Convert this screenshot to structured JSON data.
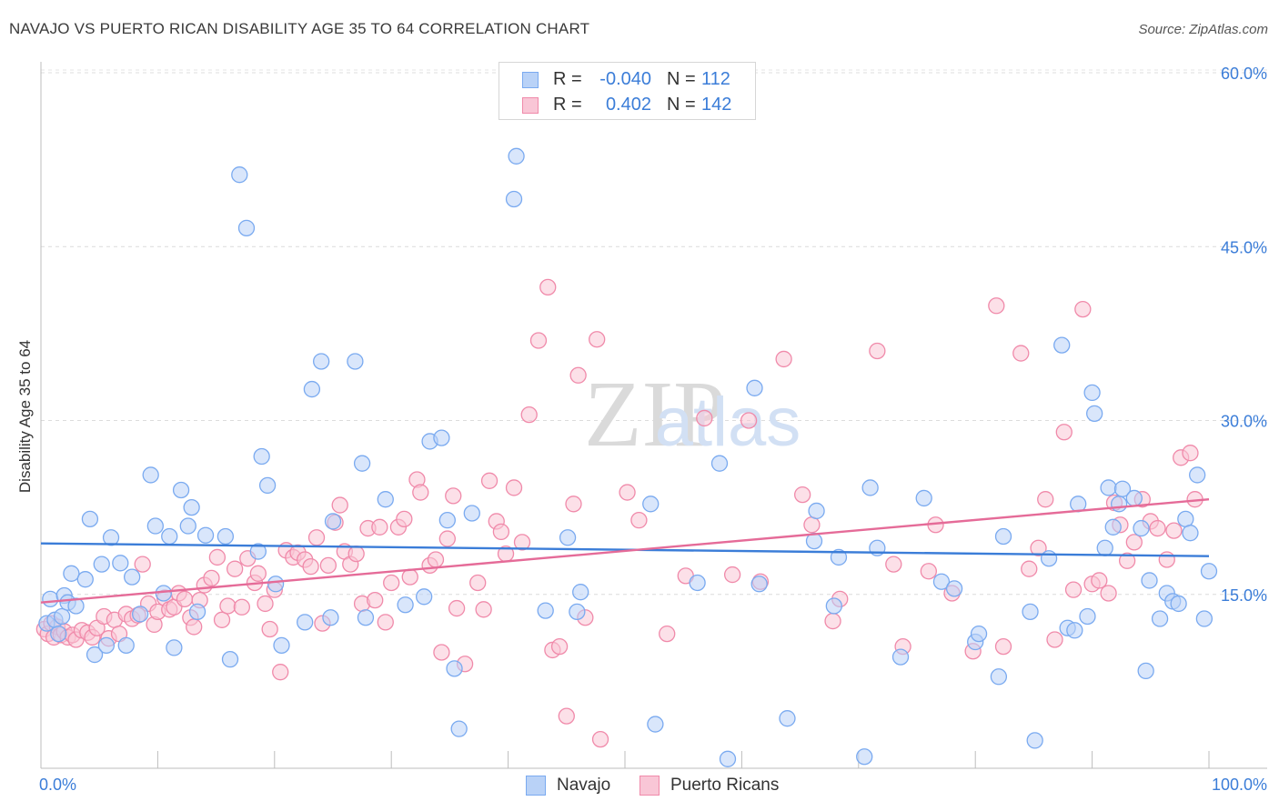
{
  "header": {
    "title": "NAVAJO VS PUERTO RICAN DISABILITY AGE 35 TO 64 CORRELATION CHART",
    "source": "Source: ZipAtlas.com"
  },
  "watermark": {
    "zip": "ZIP",
    "atlas": "atlas"
  },
  "legend": {
    "rows": [
      {
        "r_label": "R =",
        "r_value": "-0.040",
        "n_label": "N =",
        "n_value": "112",
        "color": "#7aaaf0",
        "fill": "#b9d2f7"
      },
      {
        "r_label": "R =",
        "r_value": "0.402",
        "n_label": "N =",
        "n_value": "142",
        "color": "#f08aaa",
        "fill": "#f9c6d6"
      }
    ]
  },
  "bottom_legend": {
    "navajo": "Navajo",
    "puerto_ricans": "Puerto Ricans"
  },
  "chart_data": {
    "type": "scatter",
    "title": "NAVAJO VS PUERTO RICAN DISABILITY AGE 35 TO 64 CORRELATION CHART",
    "xlabel": "",
    "ylabel": "Disability Age 35 to 64",
    "xlim": [
      0,
      100
    ],
    "ylim": [
      0,
      60
    ],
    "x_tick_labels": [
      "0.0%",
      "100.0%"
    ],
    "y_ticks": [
      15,
      30,
      45,
      60
    ],
    "y_tick_labels": [
      "15.0%",
      "30.0%",
      "45.0%",
      "60.0%"
    ],
    "grid": true,
    "legend_position": "top-center",
    "series": [
      {
        "name": "Navajo",
        "color": "#3b7dd8",
        "fill": "#b9d2f7",
        "stroke": "#7aaaf0",
        "trend": {
          "start": [
            0,
            19.4
          ],
          "end": [
            100,
            18.3
          ]
        },
        "points": [
          [
            0.5,
            12.5
          ],
          [
            0.8,
            14.6
          ],
          [
            1.2,
            12.8
          ],
          [
            1.5,
            11.6
          ],
          [
            1.8,
            13.1
          ],
          [
            2.0,
            14.9
          ],
          [
            2.3,
            14.3
          ],
          [
            2.6,
            16.8
          ],
          [
            3.0,
            14.0
          ],
          [
            3.8,
            16.3
          ],
          [
            4.2,
            21.5
          ],
          [
            4.6,
            9.8
          ],
          [
            5.2,
            17.6
          ],
          [
            5.6,
            10.6
          ],
          [
            6.0,
            19.9
          ],
          [
            6.8,
            17.7
          ],
          [
            7.3,
            10.6
          ],
          [
            7.8,
            16.5
          ],
          [
            8.5,
            13.3
          ],
          [
            9.4,
            25.3
          ],
          [
            9.8,
            20.9
          ],
          [
            10.5,
            15.1
          ],
          [
            11.0,
            20.0
          ],
          [
            11.4,
            10.4
          ],
          [
            12.0,
            24.0
          ],
          [
            12.6,
            20.9
          ],
          [
            12.9,
            22.5
          ],
          [
            13.4,
            13.5
          ],
          [
            14.1,
            20.1
          ],
          [
            15.8,
            20.0
          ],
          [
            16.2,
            9.4
          ],
          [
            17.0,
            51.2
          ],
          [
            17.6,
            46.6
          ],
          [
            18.6,
            18.7
          ],
          [
            18.9,
            26.9
          ],
          [
            19.4,
            24.4
          ],
          [
            20.1,
            15.9
          ],
          [
            20.6,
            10.6
          ],
          [
            22.6,
            12.6
          ],
          [
            23.2,
            32.7
          ],
          [
            24.0,
            35.1
          ],
          [
            24.8,
            13.0
          ],
          [
            25.0,
            21.3
          ],
          [
            26.9,
            35.1
          ],
          [
            27.5,
            26.3
          ],
          [
            27.8,
            13.0
          ],
          [
            29.5,
            23.2
          ],
          [
            31.2,
            14.1
          ],
          [
            32.8,
            14.8
          ],
          [
            33.3,
            28.2
          ],
          [
            34.3,
            28.5
          ],
          [
            34.8,
            21.4
          ],
          [
            35.4,
            8.6
          ],
          [
            35.8,
            3.4
          ],
          [
            36.9,
            22.0
          ],
          [
            40.5,
            49.1
          ],
          [
            40.7,
            52.8
          ],
          [
            43.2,
            13.6
          ],
          [
            45.1,
            19.9
          ],
          [
            45.9,
            13.5
          ],
          [
            46.2,
            15.2
          ],
          [
            52.2,
            22.8
          ],
          [
            52.6,
            3.8
          ],
          [
            56.2,
            16.0
          ],
          [
            58.1,
            26.3
          ],
          [
            58.8,
            0.8
          ],
          [
            61.1,
            32.8
          ],
          [
            61.5,
            15.9
          ],
          [
            63.9,
            4.3
          ],
          [
            66.2,
            19.6
          ],
          [
            66.4,
            22.2
          ],
          [
            67.9,
            14.0
          ],
          [
            68.3,
            18.2
          ],
          [
            70.5,
            1.0
          ],
          [
            71.0,
            24.2
          ],
          [
            71.6,
            19.0
          ],
          [
            73.6,
            9.6
          ],
          [
            75.6,
            23.3
          ],
          [
            77.1,
            16.1
          ],
          [
            78.2,
            15.5
          ],
          [
            80.0,
            10.9
          ],
          [
            80.3,
            11.6
          ],
          [
            82.0,
            7.9
          ],
          [
            82.4,
            20.0
          ],
          [
            84.7,
            13.5
          ],
          [
            85.1,
            2.4
          ],
          [
            86.3,
            18.1
          ],
          [
            87.4,
            36.5
          ],
          [
            87.9,
            12.1
          ],
          [
            88.5,
            11.9
          ],
          [
            88.8,
            22.8
          ],
          [
            89.6,
            13.1
          ],
          [
            90.0,
            32.4
          ],
          [
            90.2,
            30.6
          ],
          [
            91.1,
            19.0
          ],
          [
            91.4,
            24.2
          ],
          [
            91.8,
            20.8
          ],
          [
            92.3,
            22.8
          ],
          [
            92.6,
            24.1
          ],
          [
            93.6,
            23.3
          ],
          [
            94.2,
            20.7
          ],
          [
            94.6,
            8.4
          ],
          [
            94.9,
            16.2
          ],
          [
            95.8,
            12.9
          ],
          [
            96.4,
            15.1
          ],
          [
            96.9,
            14.4
          ],
          [
            97.4,
            14.2
          ],
          [
            98.0,
            21.5
          ],
          [
            98.4,
            20.3
          ],
          [
            99.0,
            25.3
          ],
          [
            99.6,
            12.9
          ],
          [
            100.0,
            17.0
          ]
        ]
      },
      {
        "name": "Puerto Ricans",
        "color": "#e56b98",
        "fill": "#f9c6d6",
        "stroke": "#f08aaa",
        "trend": {
          "start": [
            0,
            14.3
          ],
          "end": [
            100,
            23.2
          ]
        },
        "points": [
          [
            0.3,
            12.0
          ],
          [
            0.6,
            11.6
          ],
          [
            0.9,
            12.5
          ],
          [
            1.1,
            11.3
          ],
          [
            1.4,
            12.2
          ],
          [
            1.7,
            11.5
          ],
          [
            2.0,
            11.8
          ],
          [
            2.3,
            11.3
          ],
          [
            2.7,
            11.5
          ],
          [
            3.0,
            11.1
          ],
          [
            3.5,
            11.9
          ],
          [
            4.0,
            11.7
          ],
          [
            4.4,
            11.3
          ],
          [
            4.8,
            12.1
          ],
          [
            5.4,
            13.1
          ],
          [
            5.8,
            11.2
          ],
          [
            6.3,
            12.8
          ],
          [
            6.7,
            11.6
          ],
          [
            7.3,
            13.3
          ],
          [
            7.8,
            12.9
          ],
          [
            8.3,
            13.2
          ],
          [
            8.7,
            17.6
          ],
          [
            9.2,
            14.2
          ],
          [
            9.7,
            12.4
          ],
          [
            10.0,
            13.5
          ],
          [
            10.6,
            14.7
          ],
          [
            11.0,
            13.7
          ],
          [
            11.4,
            13.9
          ],
          [
            11.8,
            15.1
          ],
          [
            12.3,
            14.6
          ],
          [
            12.8,
            13.0
          ],
          [
            13.1,
            12.2
          ],
          [
            13.6,
            14.5
          ],
          [
            14.0,
            15.8
          ],
          [
            14.6,
            16.4
          ],
          [
            15.1,
            18.2
          ],
          [
            15.5,
            12.8
          ],
          [
            16.0,
            14.0
          ],
          [
            16.6,
            17.2
          ],
          [
            17.2,
            13.9
          ],
          [
            17.7,
            18.1
          ],
          [
            18.3,
            16.0
          ],
          [
            18.6,
            16.8
          ],
          [
            19.2,
            14.2
          ],
          [
            19.6,
            12.0
          ],
          [
            20.0,
            15.4
          ],
          [
            20.5,
            8.3
          ],
          [
            21.0,
            18.8
          ],
          [
            21.6,
            18.2
          ],
          [
            22.0,
            18.6
          ],
          [
            22.6,
            18.0
          ],
          [
            23.1,
            17.4
          ],
          [
            23.6,
            19.9
          ],
          [
            24.1,
            12.5
          ],
          [
            24.6,
            17.5
          ],
          [
            25.2,
            21.2
          ],
          [
            25.6,
            22.7
          ],
          [
            26.0,
            18.7
          ],
          [
            26.5,
            17.6
          ],
          [
            27.0,
            18.5
          ],
          [
            27.5,
            14.2
          ],
          [
            28.0,
            20.7
          ],
          [
            28.6,
            14.5
          ],
          [
            29.0,
            20.8
          ],
          [
            29.5,
            12.6
          ],
          [
            30.0,
            16.0
          ],
          [
            30.6,
            20.8
          ],
          [
            31.1,
            21.5
          ],
          [
            31.6,
            16.5
          ],
          [
            32.2,
            24.9
          ],
          [
            32.5,
            23.8
          ],
          [
            33.3,
            17.5
          ],
          [
            33.8,
            18.0
          ],
          [
            34.3,
            10.0
          ],
          [
            34.8,
            19.8
          ],
          [
            35.3,
            23.5
          ],
          [
            35.6,
            13.8
          ],
          [
            36.3,
            9.0
          ],
          [
            37.4,
            16.0
          ],
          [
            37.9,
            13.7
          ],
          [
            38.4,
            24.8
          ],
          [
            39.0,
            21.3
          ],
          [
            39.4,
            20.4
          ],
          [
            39.8,
            18.5
          ],
          [
            40.5,
            24.2
          ],
          [
            41.2,
            19.5
          ],
          [
            41.8,
            30.5
          ],
          [
            42.6,
            36.9
          ],
          [
            43.4,
            41.5
          ],
          [
            43.8,
            10.2
          ],
          [
            44.4,
            10.5
          ],
          [
            45.0,
            4.5
          ],
          [
            45.6,
            22.8
          ],
          [
            46.0,
            33.9
          ],
          [
            46.6,
            13.0
          ],
          [
            47.6,
            37.0
          ],
          [
            47.9,
            2.5
          ],
          [
            50.2,
            23.8
          ],
          [
            51.2,
            21.4
          ],
          [
            53.6,
            11.6
          ],
          [
            55.2,
            16.6
          ],
          [
            56.8,
            30.2
          ],
          [
            59.2,
            16.7
          ],
          [
            60.6,
            30.0
          ],
          [
            61.6,
            16.1
          ],
          [
            63.6,
            35.3
          ],
          [
            65.2,
            23.6
          ],
          [
            66.0,
            21.0
          ],
          [
            67.8,
            12.7
          ],
          [
            68.4,
            14.6
          ],
          [
            71.6,
            36.0
          ],
          [
            73.0,
            17.6
          ],
          [
            73.8,
            10.5
          ],
          [
            76.0,
            17.0
          ],
          [
            76.6,
            21.0
          ],
          [
            78.0,
            15.1
          ],
          [
            79.8,
            10.1
          ],
          [
            81.8,
            39.9
          ],
          [
            82.4,
            10.5
          ],
          [
            83.9,
            35.8
          ],
          [
            84.6,
            17.2
          ],
          [
            85.4,
            19.0
          ],
          [
            86.0,
            23.2
          ],
          [
            86.8,
            11.1
          ],
          [
            87.6,
            29.0
          ],
          [
            88.4,
            15.4
          ],
          [
            89.2,
            39.6
          ],
          [
            90.0,
            15.9
          ],
          [
            90.6,
            16.2
          ],
          [
            91.4,
            15.1
          ],
          [
            91.9,
            22.9
          ],
          [
            92.4,
            21.0
          ],
          [
            93.0,
            17.9
          ],
          [
            93.6,
            19.5
          ],
          [
            94.3,
            23.2
          ],
          [
            95.0,
            21.3
          ],
          [
            95.6,
            20.7
          ],
          [
            96.4,
            18.0
          ],
          [
            97.0,
            20.5
          ],
          [
            97.6,
            26.8
          ],
          [
            98.4,
            27.2
          ],
          [
            98.8,
            23.2
          ]
        ]
      }
    ]
  }
}
